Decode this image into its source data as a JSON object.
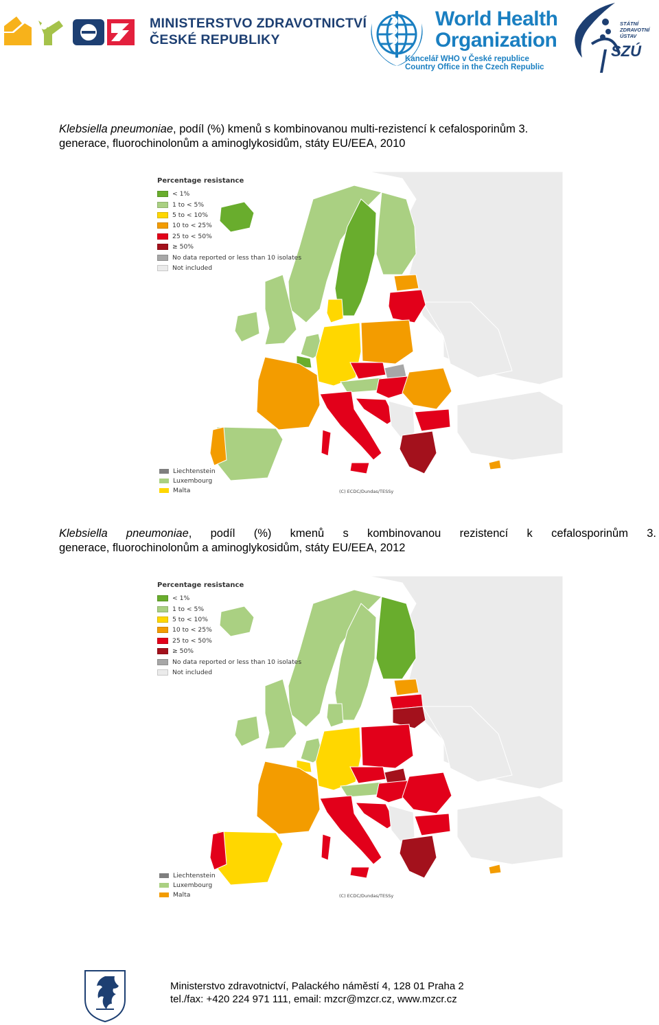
{
  "header": {
    "ministry_line1": "MINISTERSTVO ZDRAVOTNICTVÍ",
    "ministry_line2": "ČESKÉ REPUBLIKY",
    "who_line1": "World Health",
    "who_line2": "Organization",
    "who_sub1": "Kancelář WHO v České republice",
    "who_sub2": "Country Office in the Czech Republic",
    "szu_line1": "STÁTNÍ",
    "szu_line2": "ZDRAVOTNÍ",
    "szu_line3": "ÚSTAV",
    "szu_mark": "SZÚ"
  },
  "caption_2010": {
    "italic": "Klebsiella pneumoniae",
    "rest_line1": ", podíl (%) kmenů s kombinovanou multi-rezistencí k cefalosporinům 3.",
    "line2": "generace, fluorochinolonům a aminoglykosidům, státy EU/EEA, 2010"
  },
  "caption_2012": {
    "italic": "Klebsiella pneumoniae",
    "rest_line1": ", podíl (%) kmenů s kombinovanou rezistencí k cefalosporinům 3.",
    "line2": "generace, fluorochinolonům a aminoglykosidům, státy EU/EEA, 2012"
  },
  "legend": {
    "title": "Percentage resistance",
    "items": [
      {
        "label": "< 1%",
        "color": "#69ad2d"
      },
      {
        "label": "1 to < 5%",
        "color": "#aad082"
      },
      {
        "label": "5 to < 10%",
        "color": "#ffd700"
      },
      {
        "label": "10 to < 25%",
        "color": "#f39c00"
      },
      {
        "label": "25 to < 50%",
        "color": "#e2001a"
      },
      {
        "label": "≥ 50%",
        "color": "#a3111c"
      },
      {
        "label": "No data reported or less than 10 isolates",
        "color": "#a7a7a7"
      },
      {
        "label": "Not included",
        "color": "#ebebeb"
      }
    ]
  },
  "small_countries_2010": [
    {
      "label": "Liechtenstein",
      "color": "#7f7f7f"
    },
    {
      "label": "Luxembourg",
      "color": "#aad082"
    },
    {
      "label": "Malta",
      "color": "#ffd700"
    }
  ],
  "small_countries_2012": [
    {
      "label": "Liechtenstein",
      "color": "#7f7f7f"
    },
    {
      "label": "Luxembourg",
      "color": "#aad082"
    },
    {
      "label": "Malta",
      "color": "#f39c00"
    }
  ],
  "map_credit": "(C) ECDC/Dundas/TESSy",
  "footer": {
    "line1": "Ministerstvo zdravotnictví, Palackého náměstí 4, 128 01 Praha 2",
    "line2": "tel./fax: +420 224 971 111, email: mzcr@mzcr.cz, www.mzcr.cz"
  }
}
